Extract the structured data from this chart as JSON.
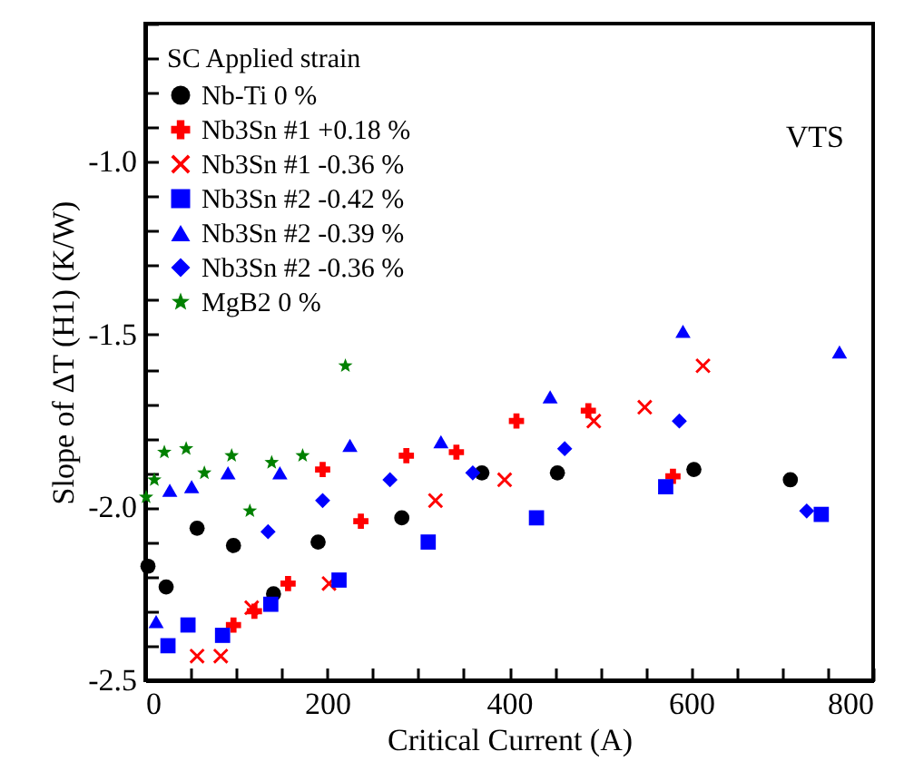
{
  "chart_data": {
    "type": "scatter",
    "xlabel": "Critical Current (A)",
    "ylabel": "Slope of ΔT (H1) (K/W)",
    "legend_title": "SC        Applied strain",
    "legend": "top left",
    "annotations": [
      "VTS"
    ],
    "xlim": [
      0,
      800
    ],
    "ylim": [
      -2.5,
      -0.6
    ],
    "xticks": [
      0,
      {
        "value": 50,
        "label": null
      },
      {
        "value": 100,
        "label": null
      },
      {
        "value": 150,
        "label": null
      },
      200,
      {
        "value": 250,
        "label": null
      },
      {
        "value": 300,
        "label": null
      },
      {
        "value": 350,
        "label": null
      },
      400,
      {
        "value": 450,
        "label": null
      },
      {
        "value": 500,
        "label": null
      },
      {
        "value": 550,
        "label": null
      },
      600,
      {
        "value": 650,
        "label": null
      },
      {
        "value": 700,
        "label": null
      },
      {
        "value": 750,
        "label": null
      },
      800
    ],
    "yticks": [
      -2.5,
      {
        "value": -2.4,
        "label": null
      },
      {
        "value": -2.3,
        "label": null
      },
      {
        "value": -2.2,
        "label": null
      },
      {
        "value": -2.1,
        "label": null
      },
      {
        "value": -2,
        "label": "-2.0"
      },
      {
        "value": -1.9,
        "label": null
      },
      {
        "value": -1.8,
        "label": null
      },
      {
        "value": -1.7,
        "label": null
      },
      {
        "value": -1.6,
        "label": null
      },
      -1.5,
      {
        "value": -1.4,
        "label": null
      },
      {
        "value": -1.3,
        "label": null
      },
      {
        "value": -1.2,
        "label": null
      },
      {
        "value": -1.1,
        "label": null
      },
      {
        "value": -1,
        "label": "-1.0"
      },
      {
        "value": -0.9,
        "label": null
      },
      {
        "value": -0.8,
        "label": null
      },
      {
        "value": -0.7,
        "label": null
      },
      {
        "value": -0.6,
        "label": null
      }
    ],
    "series": [
      {
        "name": "Nb-Ti  0 %",
        "color": "#000000",
        "marker": "circle",
        "x": [
          3,
          23,
          57,
          97,
          141,
          190,
          282,
          370,
          453,
          603,
          709
        ],
        "values": [
          -2.17,
          -2.23,
          -2.06,
          -2.11,
          -2.25,
          -2.1,
          -2.03,
          -1.9,
          -1.9,
          -1.89,
          -1.92
        ]
      },
      {
        "name": "Nb3Sn #1 +0.18 %",
        "color": "#ff0000",
        "marker": "cross",
        "x": [
          97,
          120,
          157,
          195,
          237,
          287,
          342,
          408,
          487,
          580
        ],
        "values": [
          -2.34,
          -2.3,
          -2.22,
          -1.89,
          -2.04,
          -1.85,
          -1.84,
          -1.75,
          -1.72,
          -1.91
        ]
      },
      {
        "name": "Nb3Sn #1 -0.36 %",
        "color": "#ff0000",
        "marker": "x",
        "x": [
          57,
          83,
          117,
          202,
          319,
          395,
          493,
          549,
          613
        ],
        "values": [
          -2.43,
          -2.43,
          -2.29,
          -2.22,
          -1.98,
          -1.92,
          -1.75,
          -1.71,
          -1.59
        ]
      },
      {
        "name": "Nb3Sn #2 -0.42 %",
        "color": "#0000ff",
        "marker": "square",
        "x": [
          25,
          47,
          85,
          138,
          213,
          311,
          430,
          572,
          743
        ],
        "values": [
          -2.4,
          -2.34,
          -2.37,
          -2.28,
          -2.21,
          -2.1,
          -2.03,
          -1.94,
          -2.02
        ]
      },
      {
        "name": "Nb3Sn #2 -0.39 %",
        "color": "#0000ff",
        "marker": "triangle",
        "x": [
          12,
          27,
          51,
          91,
          148,
          225,
          325,
          445,
          591,
          763
        ],
        "values": [
          -2.33,
          -1.95,
          -1.94,
          -1.9,
          -1.9,
          -1.82,
          -1.81,
          -1.68,
          -1.49,
          -1.55
        ]
      },
      {
        "name": "Nb3Sn #2 -0.36 %",
        "color": "#0000ff",
        "marker": "diamond",
        "x": [
          135,
          195,
          269,
          360,
          461,
          587,
          727
        ],
        "values": [
          -2.07,
          -1.98,
          -1.92,
          -1.9,
          -1.83,
          -1.75,
          -2.01
        ]
      },
      {
        "name": "MgB2  0 %",
        "color": "#008000",
        "marker": "star",
        "x": [
          1,
          10,
          21,
          45,
          65,
          95,
          115,
          139,
          173,
          220
        ],
        "values": [
          -1.97,
          -1.92,
          -1.84,
          -1.83,
          -1.9,
          -1.85,
          -2.01,
          -1.87,
          -1.85,
          -1.59
        ]
      }
    ]
  }
}
